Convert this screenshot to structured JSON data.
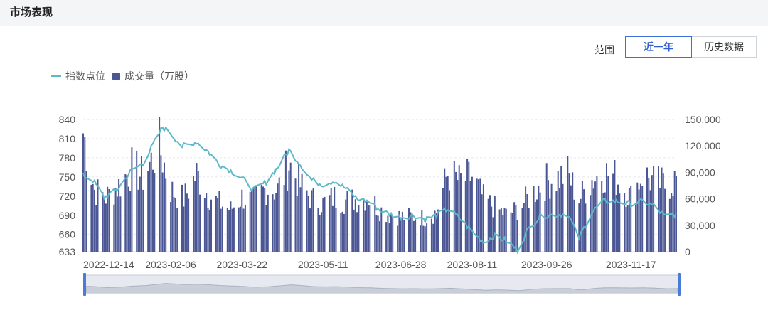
{
  "header": {
    "title": "市场表现"
  },
  "range": {
    "label": "范围",
    "buttons": [
      {
        "label": "近一年",
        "active": true
      },
      {
        "label": "历史数据",
        "active": false
      }
    ]
  },
  "colors": {
    "bar": "#4b5694",
    "line": "#5db8c8",
    "active": "#3c6fdc"
  },
  "chart_data": {
    "type": "bar",
    "legend": [
      "指数点位",
      "成交量（万股）"
    ],
    "legend_position": "top-left",
    "grid": true,
    "left_axis": {
      "ticks": [
        633,
        660,
        690,
        720,
        750,
        780,
        810,
        840
      ],
      "range": [
        633,
        840
      ]
    },
    "right_axis": {
      "ticks": [
        "0",
        "30,000",
        "60,000",
        "90,000",
        "120,000",
        "150,000"
      ],
      "range": [
        0,
        150000
      ]
    },
    "x_ticks": [
      "2022-12-14",
      "2023-02-06",
      "2023-03-22",
      "2023-05-11",
      "2023-06-28",
      "2023-08-11",
      "2023-09-26",
      "2023-11-17"
    ],
    "index_keypoints": [
      [
        "2022-12-14",
        752
      ],
      [
        "2022-12-20",
        745
      ],
      [
        "2022-12-27",
        718
      ],
      [
        "2023-01-04",
        730
      ],
      [
        "2023-01-12",
        758
      ],
      [
        "2023-01-20",
        772
      ],
      [
        "2023-02-01",
        828
      ],
      [
        "2023-02-06",
        818
      ],
      [
        "2023-02-13",
        798
      ],
      [
        "2023-02-22",
        805
      ],
      [
        "2023-03-01",
        790
      ],
      [
        "2023-03-08",
        770
      ],
      [
        "2023-03-15",
        760
      ],
      [
        "2023-03-22",
        748
      ],
      [
        "2023-03-29",
        730
      ],
      [
        "2023-04-06",
        742
      ],
      [
        "2023-04-13",
        765
      ],
      [
        "2023-04-20",
        792
      ],
      [
        "2023-04-27",
        770
      ],
      [
        "2023-05-04",
        745
      ],
      [
        "2023-05-11",
        738
      ],
      [
        "2023-05-18",
        744
      ],
      [
        "2023-05-25",
        732
      ],
      [
        "2023-06-01",
        716
      ],
      [
        "2023-06-08",
        712
      ],
      [
        "2023-06-15",
        698
      ],
      [
        "2023-06-21",
        692
      ],
      [
        "2023-06-28",
        687
      ],
      [
        "2023-07-06",
        690
      ],
      [
        "2023-07-13",
        684
      ],
      [
        "2023-07-20",
        690
      ],
      [
        "2023-07-27",
        700
      ],
      [
        "2023-08-03",
        686
      ],
      [
        "2023-08-11",
        665
      ],
      [
        "2023-08-18",
        648
      ],
      [
        "2023-08-25",
        658
      ],
      [
        "2023-09-01",
        650
      ],
      [
        "2023-09-08",
        636
      ],
      [
        "2023-09-15",
        670
      ],
      [
        "2023-09-22",
        688
      ],
      [
        "2023-09-26",
        690
      ],
      [
        "2023-10-09",
        692
      ],
      [
        "2023-10-16",
        655
      ],
      [
        "2023-10-24",
        695
      ],
      [
        "2023-10-31",
        712
      ],
      [
        "2023-11-07",
        712
      ],
      [
        "2023-11-17",
        708
      ],
      [
        "2023-11-24",
        712
      ],
      [
        "2023-12-01",
        705
      ],
      [
        "2023-12-08",
        688
      ],
      [
        "2023-12-15",
        692
      ]
    ],
    "volume_keypoints": [
      [
        "2022-12-14",
        135000
      ],
      [
        "2022-12-21",
        70000
      ],
      [
        "2022-12-28",
        62000
      ],
      [
        "2023-01-05",
        75000
      ],
      [
        "2023-01-13",
        95000
      ],
      [
        "2023-01-20",
        85000
      ],
      [
        "2023-01-30",
        120000
      ],
      [
        "2023-02-06",
        70000
      ],
      [
        "2023-02-14",
        60000
      ],
      [
        "2023-02-22",
        88000
      ],
      [
        "2023-03-01",
        65000
      ],
      [
        "2023-03-08",
        55000
      ],
      [
        "2023-03-15",
        48000
      ],
      [
        "2023-03-22",
        62000
      ],
      [
        "2023-03-29",
        58000
      ],
      [
        "2023-04-06",
        72000
      ],
      [
        "2023-04-13",
        70000
      ],
      [
        "2023-04-20",
        100000
      ],
      [
        "2023-04-27",
        75000
      ],
      [
        "2023-05-04",
        60000
      ],
      [
        "2023-05-11",
        55000
      ],
      [
        "2023-05-18",
        62000
      ],
      [
        "2023-05-25",
        58000
      ],
      [
        "2023-06-01",
        60000
      ],
      [
        "2023-06-08",
        62000
      ],
      [
        "2023-06-15",
        48000
      ],
      [
        "2023-06-21",
        42000
      ],
      [
        "2023-06-28",
        40000
      ],
      [
        "2023-07-06",
        40000
      ],
      [
        "2023-07-13",
        38000
      ],
      [
        "2023-07-20",
        45000
      ],
      [
        "2023-07-27",
        90000
      ],
      [
        "2023-08-03",
        80000
      ],
      [
        "2023-08-11",
        85000
      ],
      [
        "2023-08-18",
        60000
      ],
      [
        "2023-08-25",
        50000
      ],
      [
        "2023-09-01",
        42000
      ],
      [
        "2023-09-08",
        48000
      ],
      [
        "2023-09-15",
        62000
      ],
      [
        "2023-09-22",
        75000
      ],
      [
        "2023-09-26",
        80000
      ],
      [
        "2023-10-09",
        88000
      ],
      [
        "2023-10-16",
        60000
      ],
      [
        "2023-10-24",
        82000
      ],
      [
        "2023-10-31",
        90000
      ],
      [
        "2023-11-07",
        85000
      ],
      [
        "2023-11-17",
        62000
      ],
      [
        "2023-11-24",
        88000
      ],
      [
        "2023-12-01",
        80000
      ],
      [
        "2023-12-08",
        75000
      ],
      [
        "2023-12-15",
        82000
      ]
    ]
  }
}
